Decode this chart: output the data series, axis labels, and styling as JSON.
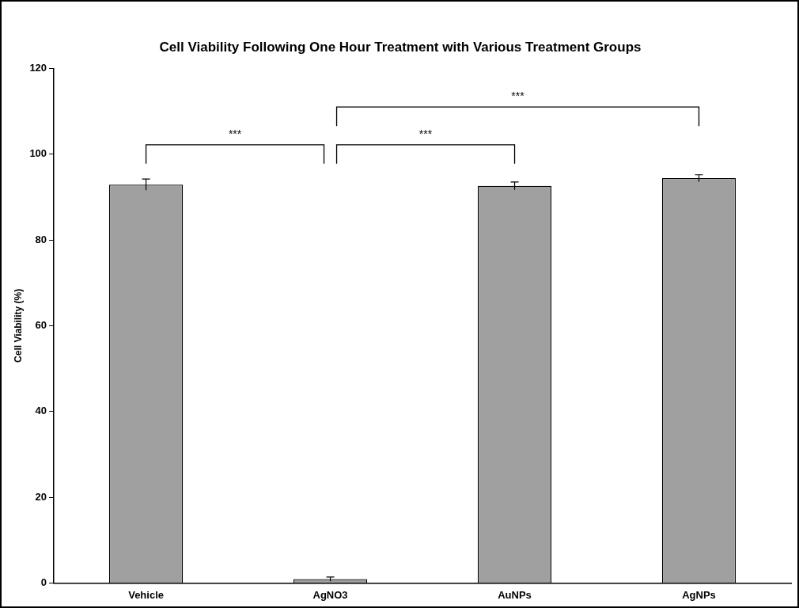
{
  "chart_data": {
    "type": "bar",
    "title": "Cell Viability Following One Hour Treatment with Various Treatment Groups",
    "ylabel": "Cell Viability (%)",
    "categories": [
      "Vehicle",
      "AgNO3",
      "AuNPs",
      "AgNPs"
    ],
    "values": [
      92.9,
      0.9,
      92.6,
      94.4
    ],
    "errors": [
      1.3,
      0.5,
      0.9,
      0.8
    ],
    "color": "#a0a0a0",
    "ylim": [
      0,
      120
    ],
    "yticks": [
      0,
      20,
      40,
      60,
      80,
      100,
      120
    ],
    "grid": false,
    "legend": false,
    "annotations": [
      "***",
      "***",
      "***"
    ]
  }
}
